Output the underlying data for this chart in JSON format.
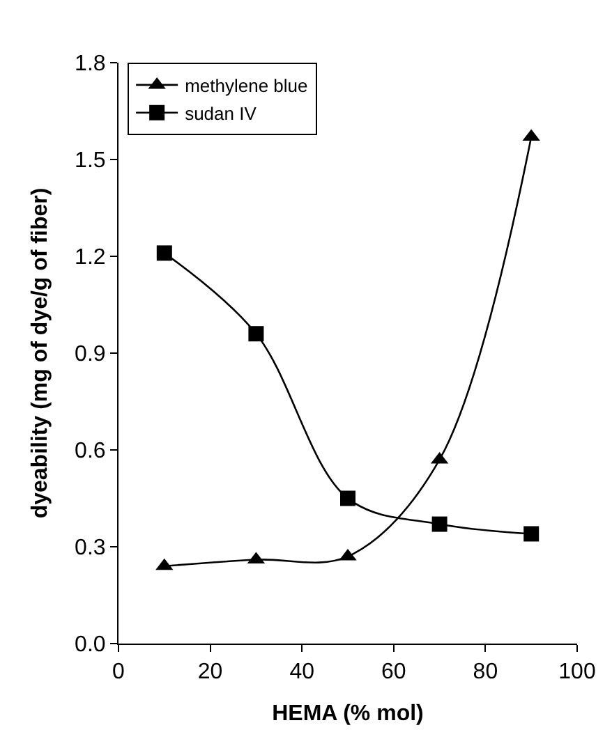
{
  "chart_data": {
    "type": "line",
    "xlabel": "HEMA (% mol)",
    "ylabel": "dyeability (mg of dye/g of fiber)",
    "x": [
      10,
      30,
      50,
      70,
      90
    ],
    "series": [
      {
        "name": "methylene blue",
        "color": "#000000",
        "marker": "triangle",
        "values": [
          0.24,
          0.26,
          0.27,
          0.57,
          1.57
        ]
      },
      {
        "name": "sudan IV",
        "color": "#000000",
        "marker": "square",
        "values": [
          1.21,
          0.96,
          0.45,
          0.37,
          0.34
        ]
      }
    ],
    "xlim": [
      0,
      100
    ],
    "xticks": [
      0,
      20,
      40,
      60,
      80,
      100
    ],
    "ylim": [
      0,
      1.8
    ],
    "yticks": [
      {
        "value": 0,
        "label": "0.0"
      },
      {
        "value": 0.3,
        "label": "0.3"
      },
      {
        "value": 0.6,
        "label": "0.6"
      },
      {
        "value": 0.9,
        "label": "0.9"
      },
      {
        "value": 1.2,
        "label": "1.2"
      },
      {
        "value": 1.5,
        "label": "1.5"
      },
      {
        "value": 1.8,
        "label": "1.8"
      }
    ],
    "legend": "top left"
  }
}
